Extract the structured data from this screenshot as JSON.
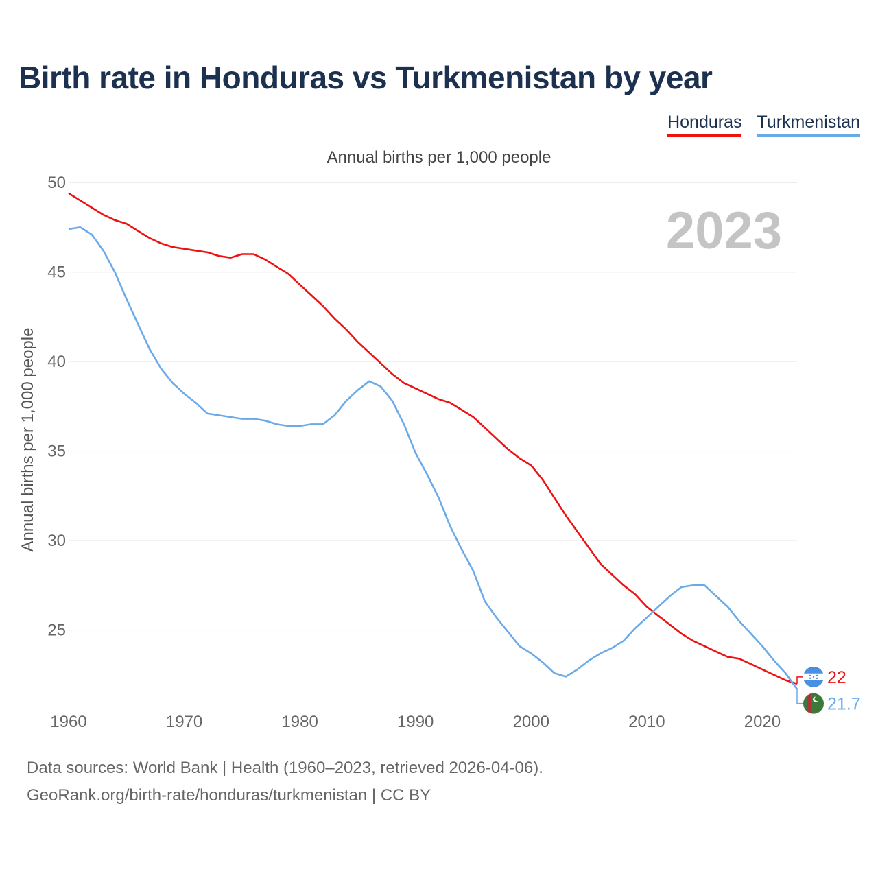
{
  "title": "Birth rate in Honduras vs Turkmenistan by year",
  "subtitle": "Annual births per 1,000 people",
  "footer": {
    "line1": "Data sources: World Bank | Health (1960–2023, retrieved 2026-04-06).",
    "line2": "GeoRank.org/birth-rate/honduras/turkmenistan | CC BY"
  },
  "chart_data": {
    "type": "line",
    "title": "Birth rate in Honduras vs Turkmenistan by year",
    "ylabel": "Annual births per 1,000 people",
    "xlabel": "",
    "year_label": "2023",
    "xlim": [
      1960,
      2023
    ],
    "ylim": [
      20.5,
      51
    ],
    "xticks": [
      1960,
      1970,
      1980,
      1990,
      2000,
      2010,
      2020
    ],
    "yticks": [
      25,
      30,
      35,
      40,
      45,
      50
    ],
    "grid": true,
    "legend_position": "top-right",
    "x": [
      1960,
      1961,
      1962,
      1963,
      1964,
      1965,
      1966,
      1967,
      1968,
      1969,
      1970,
      1971,
      1972,
      1973,
      1974,
      1975,
      1976,
      1977,
      1978,
      1979,
      1980,
      1981,
      1982,
      1983,
      1984,
      1985,
      1986,
      1987,
      1988,
      1989,
      1990,
      1991,
      1992,
      1993,
      1994,
      1995,
      1996,
      1997,
      1998,
      1999,
      2000,
      2001,
      2002,
      2003,
      2004,
      2005,
      2006,
      2007,
      2008,
      2009,
      2010,
      2011,
      2012,
      2013,
      2014,
      2015,
      2016,
      2017,
      2018,
      2019,
      2020,
      2021,
      2022,
      2023
    ],
    "series": [
      {
        "name": "Honduras",
        "color": "#ee1111",
        "end_label": "22",
        "values": [
          49.4,
          49.0,
          48.6,
          48.2,
          47.9,
          47.7,
          47.3,
          46.9,
          46.6,
          46.4,
          46.3,
          46.2,
          46.1,
          45.9,
          45.8,
          46.0,
          46.0,
          45.7,
          45.3,
          44.9,
          44.3,
          43.7,
          43.1,
          42.4,
          41.8,
          41.1,
          40.5,
          39.9,
          39.3,
          38.8,
          38.5,
          38.2,
          37.9,
          37.7,
          37.3,
          36.9,
          36.3,
          35.7,
          35.1,
          34.6,
          34.2,
          33.4,
          32.4,
          31.4,
          30.5,
          29.6,
          28.7,
          28.1,
          27.5,
          27.0,
          26.3,
          25.8,
          25.3,
          24.8,
          24.4,
          24.1,
          23.8,
          23.5,
          23.4,
          23.1,
          22.8,
          22.5,
          22.2,
          22.0
        ]
      },
      {
        "name": "Turkmenistan",
        "color": "#6aaae8",
        "end_label": "21.7",
        "values": [
          47.4,
          47.5,
          47.1,
          46.2,
          45.0,
          43.5,
          42.1,
          40.7,
          39.6,
          38.8,
          38.2,
          37.7,
          37.1,
          37.0,
          36.9,
          36.8,
          36.8,
          36.7,
          36.5,
          36.4,
          36.4,
          36.5,
          36.5,
          37.0,
          37.8,
          38.4,
          38.9,
          38.6,
          37.8,
          36.5,
          34.9,
          33.7,
          32.4,
          30.8,
          29.5,
          28.3,
          26.6,
          25.7,
          24.9,
          24.1,
          23.7,
          23.2,
          22.6,
          22.4,
          22.8,
          23.3,
          23.7,
          24.0,
          24.4,
          25.1,
          25.7,
          26.3,
          26.9,
          27.4,
          27.5,
          27.5,
          26.9,
          26.3,
          25.5,
          24.8,
          24.1,
          23.3,
          22.6,
          21.7
        ]
      }
    ]
  }
}
